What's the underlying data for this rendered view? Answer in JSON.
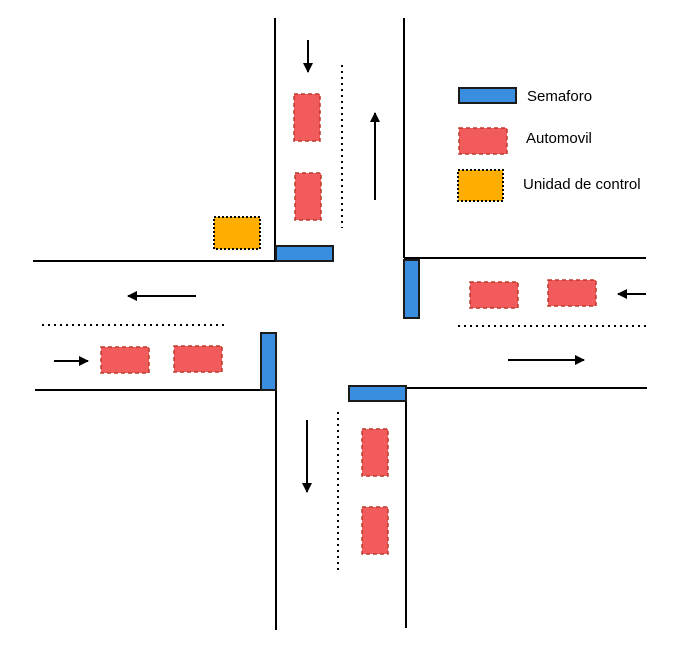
{
  "colors": {
    "road_line": "#000000",
    "traffic_light_fill": "#3a8ee0",
    "traffic_light_border": "#1b1b1b",
    "car_fill": "#f25b5b",
    "car_border": "#c0392b",
    "control_unit_fill": "#ffae00",
    "control_unit_border": "#000000",
    "background": "#ffffff"
  },
  "legend": {
    "traffic_light_label": "Semaforo",
    "car_label": "Automovil",
    "control_unit_label": "Unidad de control"
  },
  "icons": {
    "traffic_light": "semaforo-rectangle",
    "car": "automovil-dashed-rectangle",
    "control_unit": "control-unit-dotted-square",
    "direction": "arrow"
  }
}
